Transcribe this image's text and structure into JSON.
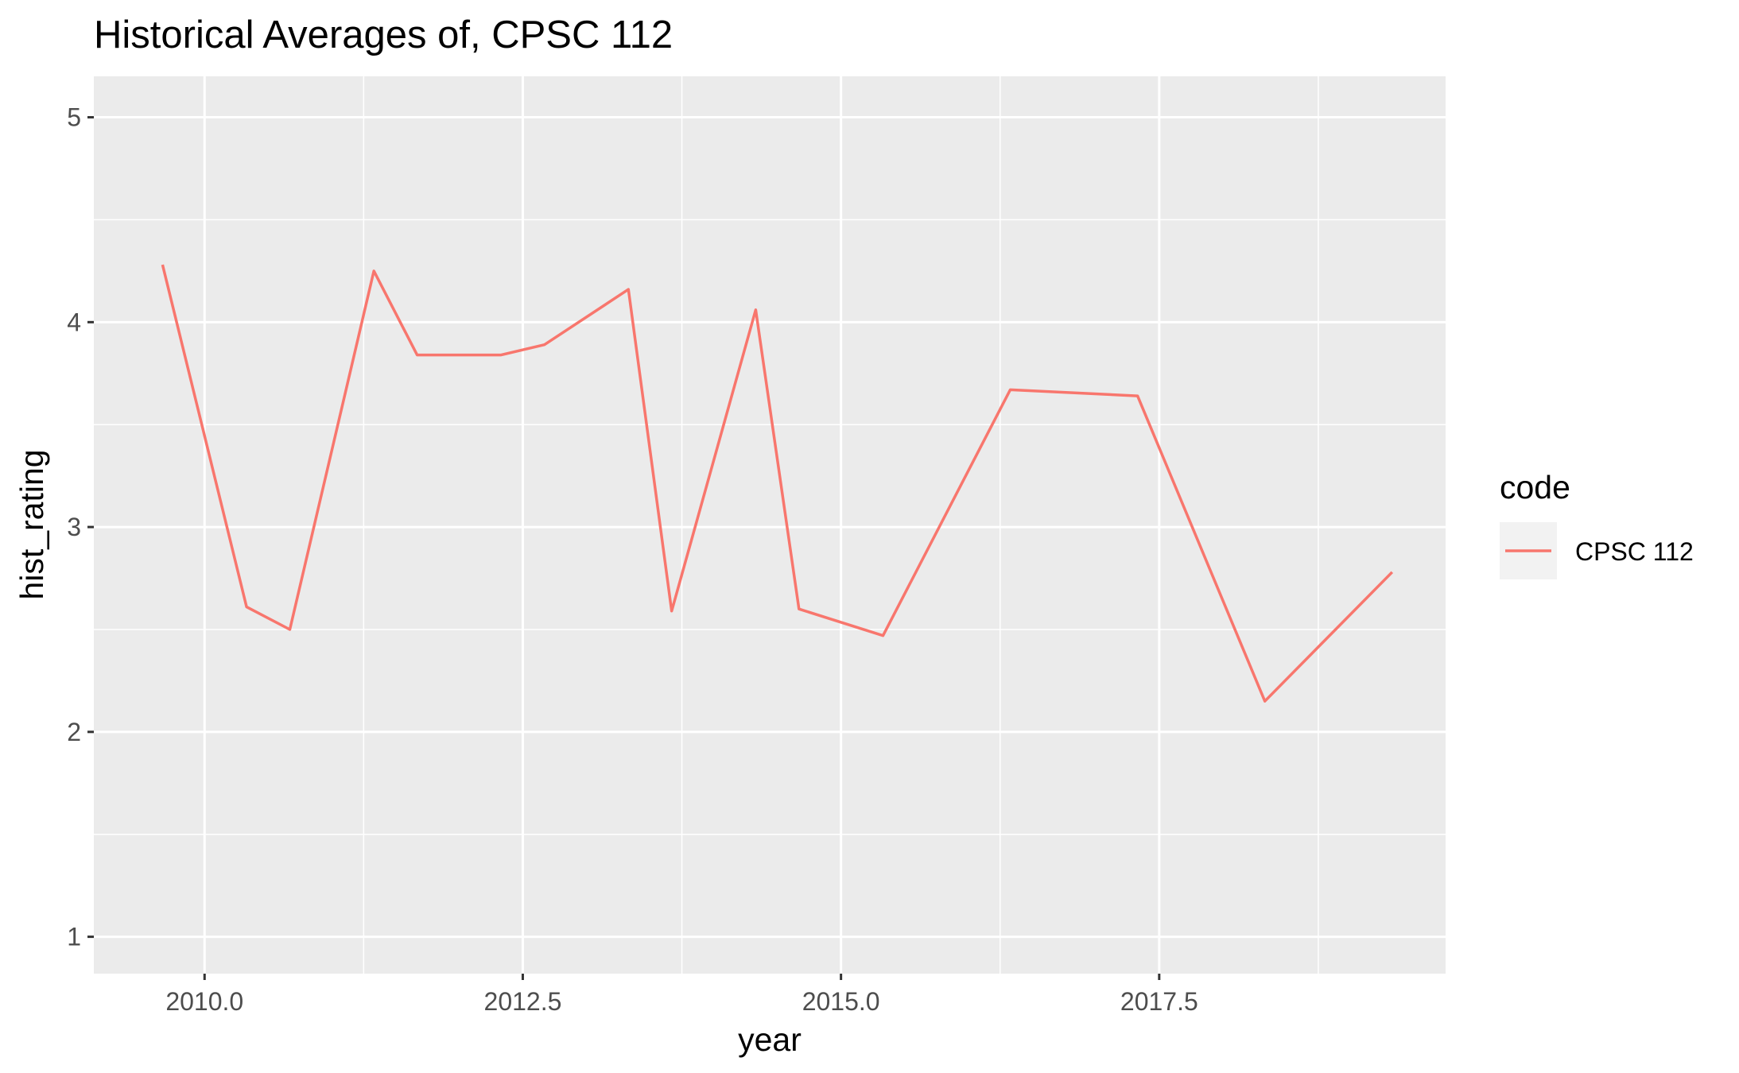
{
  "chart_data": {
    "type": "line",
    "title": "Historical Averages of, CPSC 112",
    "xlabel": "year",
    "ylabel": "hist_rating",
    "xlim": [
      2009.13,
      2019.75
    ],
    "ylim": [
      0.82,
      5.2
    ],
    "x_ticks": [
      2010.0,
      2012.5,
      2015.0,
      2017.5
    ],
    "x_tick_labels": [
      "2010.0",
      "2012.5",
      "2015.0",
      "2017.5"
    ],
    "y_ticks": [
      1,
      2,
      3,
      4,
      5
    ],
    "y_tick_labels": [
      "1",
      "2",
      "3",
      "4",
      "5"
    ],
    "grid": true,
    "legend": {
      "title": "code",
      "position": "right"
    },
    "series": [
      {
        "name": "CPSC 112",
        "color": "#f8766d",
        "x": [
          2009.67,
          2010.33,
          2010.67,
          2011.33,
          2011.67,
          2012.33,
          2012.67,
          2013.33,
          2013.67,
          2014.33,
          2014.67,
          2015.33,
          2016.33,
          2017.33,
          2018.33,
          2019.33
        ],
        "y": [
          4.28,
          2.61,
          2.5,
          4.25,
          3.84,
          3.84,
          3.89,
          4.16,
          2.59,
          4.06,
          2.6,
          2.47,
          3.67,
          3.64,
          2.15,
          2.78
        ]
      }
    ]
  }
}
